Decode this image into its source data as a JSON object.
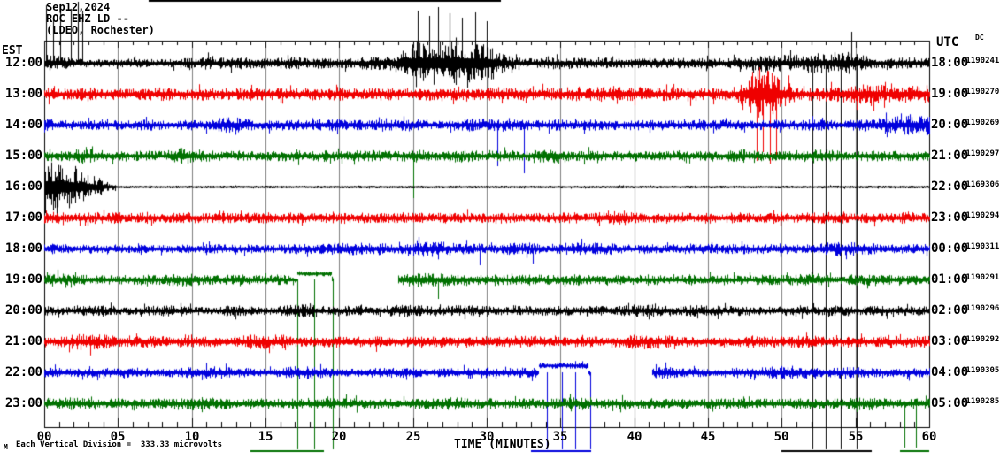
{
  "header": {
    "date": "Sep12,2024",
    "station": "ROC EHZ LD --",
    "location": "(LDEO, Rochester)"
  },
  "axes": {
    "left_timezone_label": "EST",
    "right_timezone_label": "UTC",
    "right_sub_label": "DC",
    "x_title": "TIME (MINUTES)",
    "x_ticks": [
      "00",
      "05",
      "10",
      "15",
      "20",
      "25",
      "30",
      "35",
      "40",
      "45",
      "50",
      "55",
      "60"
    ],
    "footnote": "Each Vertical Division =  333.33 microvolts",
    "corner_mark": "M"
  },
  "chart_data": {
    "type": "seismogram-helicorder",
    "title": "ROC EHZ LD -- (LDEO, Rochester) Sep12,2024",
    "x_range_minutes": [
      0,
      60
    ],
    "grid_interval_minutes": 5,
    "vertical_division_microvolts": 333.33,
    "frame_color": "#000000",
    "grid_color": "#7f7f7f",
    "trace_colors": {
      "black": "#000000",
      "red": "#ef0000",
      "blue": "#0000dd",
      "green": "#007000"
    },
    "rows": [
      {
        "est": "12:00",
        "utc": "18:00",
        "dc": "-1190241",
        "color": "#000000",
        "env": [
          10,
          8,
          5,
          4,
          4,
          4,
          5,
          4,
          4,
          5,
          6,
          7,
          6,
          7,
          6,
          5,
          6,
          7,
          5,
          6,
          5,
          6,
          7,
          7,
          10,
          24,
          25,
          24,
          25,
          24,
          23,
          10,
          6,
          5,
          6,
          7,
          6,
          5,
          6,
          5,
          5,
          6,
          5,
          6,
          5,
          6,
          5,
          6,
          8,
          10,
          9,
          9,
          11,
          11,
          13,
          12,
          7,
          5,
          6,
          6
        ],
        "vlines": [
          [
            0.1,
            6
          ],
          [
            0.6,
            20
          ],
          [
            1.1,
            4
          ],
          [
            1.8,
            10
          ],
          [
            2.3,
            2
          ],
          [
            2.6,
            12
          ],
          [
            25.3,
            12
          ],
          [
            26.1,
            18
          ],
          [
            26.7,
            8
          ],
          [
            27.5,
            15
          ],
          [
            28.3,
            20
          ],
          [
            29.2,
            14
          ],
          [
            30.0,
            24
          ],
          [
            52.1,
            508
          ],
          [
            53.0,
            508
          ],
          [
            54.0,
            508
          ],
          [
            54.7,
            36
          ],
          [
            55.1,
            508
          ]
        ],
        "bars": [
          [
            7.1,
            31.0,
            0
          ],
          [
            50.0,
            56.1,
            509
          ]
        ]
      },
      {
        "est": "13:00",
        "utc": "19:00",
        "dc": "-1190270",
        "color": "#ef0000",
        "env": [
          7,
          6,
          6,
          8,
          6,
          6,
          7,
          6,
          8,
          6,
          6,
          7,
          6,
          7,
          8,
          6,
          7,
          6,
          7,
          6,
          7,
          6,
          6,
          7,
          6,
          7,
          7,
          6,
          7,
          6,
          7,
          8,
          7,
          9,
          7,
          7,
          8,
          7,
          8,
          10,
          8,
          7,
          7,
          7,
          8,
          7,
          7,
          9,
          26,
          28,
          16,
          8,
          7,
          8,
          9,
          10,
          12,
          10,
          9,
          10
        ],
        "vlines": [
          [
            48.3,
            182
          ],
          [
            48.7,
            172
          ],
          [
            49.2,
            185
          ],
          [
            49.6,
            178
          ],
          [
            48.5,
            76
          ],
          [
            49.0,
            80
          ]
        ],
        "bars": []
      },
      {
        "est": "14:00",
        "utc": "20:00",
        "dc": "-1190269",
        "color": "#0000dd",
        "env": [
          8,
          6,
          5,
          5,
          6,
          5,
          5,
          6,
          5,
          5,
          6,
          6,
          8,
          9,
          6,
          5,
          6,
          6,
          5,
          6,
          7,
          6,
          5,
          6,
          6,
          7,
          6,
          5,
          6,
          7,
          7,
          6,
          6,
          5,
          6,
          6,
          5,
          6,
          5,
          5,
          6,
          5,
          6,
          5,
          6,
          5,
          6,
          6,
          5,
          6,
          6,
          5,
          6,
          6,
          5,
          6,
          7,
          8,
          10,
          11
        ],
        "vlines": [
          [
            30.7,
            188
          ],
          [
            32.5,
            196
          ]
        ],
        "bars": []
      },
      {
        "est": "15:00",
        "utc": "21:00",
        "dc": "-1190297",
        "color": "#007000",
        "env": [
          6,
          5,
          7,
          8,
          6,
          5,
          5,
          6,
          5,
          9,
          8,
          6,
          5,
          6,
          5,
          5,
          6,
          6,
          5,
          6,
          5,
          6,
          7,
          6,
          5,
          7,
          6,
          5,
          7,
          6,
          5,
          6,
          5,
          6,
          8,
          7,
          5,
          6,
          5,
          5,
          6,
          5,
          5,
          6,
          5,
          6,
          5,
          8,
          6,
          5,
          6,
          5,
          8,
          7,
          6,
          5,
          6,
          5,
          6,
          5
        ],
        "vlines": [
          [
            25.0,
            224
          ]
        ],
        "bars": []
      },
      {
        "est": "16:00",
        "utc": "22:00",
        "dc": "-1169306",
        "color": "#000000",
        "env": [
          30,
          28,
          22,
          15,
          8,
          1,
          1,
          1,
          1,
          1,
          1,
          1,
          1,
          1,
          1,
          1,
          1,
          1,
          1,
          1,
          1,
          1,
          1,
          1,
          1,
          1,
          1,
          1,
          1,
          1,
          1,
          1,
          1,
          1,
          1,
          1,
          1,
          1,
          1,
          1,
          1,
          1,
          1,
          1,
          1,
          1,
          1,
          1,
          1,
          1,
          1,
          1,
          1,
          1,
          1,
          1,
          1,
          1,
          1,
          1
        ],
        "vlines": [],
        "bars": []
      },
      {
        "est": "17:00",
        "utc": "23:00",
        "dc": "-1190294",
        "color": "#ef0000",
        "env": [
          8,
          6,
          5,
          5,
          6,
          6,
          5,
          6,
          5,
          6,
          6,
          5,
          6,
          5,
          6,
          6,
          5,
          6,
          5,
          5,
          6,
          5,
          6,
          5,
          6,
          6,
          5,
          6,
          5,
          6,
          5,
          6,
          5,
          6,
          5,
          6,
          6,
          5,
          8,
          9,
          6,
          5,
          6,
          6,
          5,
          6,
          5,
          6,
          5,
          6,
          5,
          5,
          6,
          6,
          7,
          5,
          6,
          5,
          6,
          6
        ],
        "vlines": [],
        "bars": []
      },
      {
        "est": "18:00",
        "utc": "00:00",
        "dc": "-1190311",
        "color": "#0000dd",
        "env": [
          6,
          5,
          4,
          5,
          4,
          5,
          4,
          5,
          4,
          5,
          4,
          5,
          5,
          4,
          5,
          4,
          5,
          6,
          5,
          6,
          7,
          7,
          6,
          7,
          5,
          8,
          9,
          8,
          7,
          6,
          5,
          6,
          7,
          6,
          5,
          6,
          7,
          7,
          6,
          5,
          5,
          6,
          5,
          5,
          6,
          5,
          5,
          6,
          5,
          5,
          6,
          5,
          5,
          7,
          8,
          7,
          6,
          5,
          5,
          5
        ],
        "vlines": [
          [
            29.5,
            300
          ],
          [
            33.1,
            298
          ]
        ],
        "bars": []
      },
      {
        "est": "19:00",
        "utc": "01:00",
        "dc": "-1190291",
        "color": "#007000",
        "env": [
          7,
          7,
          6,
          5,
          5,
          5,
          5,
          6,
          5,
          7,
          7,
          5,
          5,
          6,
          5,
          5,
          6,
          3,
          3,
          3,
          4,
          4,
          4,
          4,
          8,
          8,
          8,
          7,
          7,
          6,
          5,
          6,
          5,
          6,
          5,
          5,
          6,
          5,
          5,
          6,
          5,
          6,
          5,
          5,
          6,
          5,
          6,
          5,
          5,
          6,
          5,
          6,
          7,
          7,
          5,
          6,
          6,
          5,
          6,
          5
        ],
        "offsets": [
          [
            17.1,
            19.5,
            -7,
            2.5
          ]
        ],
        "gaps": [
          [
            19.6,
            24.0
          ]
        ],
        "vlines": [
          [
            17.15,
            508
          ],
          [
            18.3,
            508
          ],
          [
            19.55,
            508
          ],
          [
            26.7,
            338
          ]
        ],
        "bars": [
          [
            14.0,
            19.0,
            509
          ]
        ]
      },
      {
        "est": "20:00",
        "utc": "02:00",
        "dc": "-1190296",
        "color": "#000000",
        "env": [
          5,
          5,
          5,
          6,
          6,
          5,
          4,
          5,
          6,
          6,
          5,
          4,
          5,
          6,
          5,
          4,
          5,
          8,
          8,
          5,
          5,
          6,
          5,
          5,
          7,
          7,
          5,
          5,
          6,
          6,
          5,
          5,
          6,
          5,
          5,
          5,
          5,
          6,
          5,
          5,
          7,
          7,
          6,
          5,
          6,
          6,
          5,
          5,
          5,
          5,
          5,
          6,
          5,
          5,
          6,
          5,
          5,
          6,
          5,
          5
        ],
        "vlines": [],
        "bars": []
      },
      {
        "est": "21:00",
        "utc": "03:00",
        "dc": "-1190292",
        "color": "#ef0000",
        "env": [
          6,
          5,
          8,
          9,
          8,
          6,
          5,
          7,
          6,
          5,
          6,
          6,
          5,
          6,
          8,
          8,
          8,
          6,
          5,
          6,
          6,
          5,
          7,
          6,
          5,
          6,
          6,
          7,
          6,
          5,
          6,
          6,
          6,
          7,
          6,
          5,
          6,
          6,
          5,
          6,
          8,
          8,
          8,
          6,
          5,
          6,
          6,
          5,
          7,
          6,
          5,
          7,
          7,
          5,
          6,
          6,
          5,
          8,
          6,
          6
        ],
        "vlines": [],
        "bars": []
      },
      {
        "est": "22:00",
        "utc": "04:00",
        "dc": "-1190305",
        "color": "#0000dd",
        "env": [
          6,
          5,
          4,
          5,
          5,
          6,
          6,
          5,
          4,
          5,
          6,
          7,
          7,
          6,
          5,
          4,
          5,
          7,
          7,
          6,
          5,
          4,
          5,
          5,
          6,
          5,
          4,
          5,
          5,
          6,
          6,
          5,
          5,
          6,
          4,
          4,
          4,
          4,
          5,
          5,
          5,
          5,
          7,
          5,
          5,
          4,
          5,
          5,
          5,
          6,
          8,
          8,
          5,
          5,
          6,
          6,
          5,
          4,
          5,
          5
        ],
        "offsets": [
          [
            33.5,
            36.9,
            -8,
            3
          ]
        ],
        "gaps": [
          [
            37.0,
            41.2
          ]
        ],
        "vlines": [
          [
            34.1,
            508
          ],
          [
            35.1,
            508
          ],
          [
            36.0,
            508
          ],
          [
            37.0,
            508
          ]
        ],
        "bars": [
          [
            33.0,
            37.1,
            509
          ]
        ]
      },
      {
        "est": "23:00",
        "utc": "05:00",
        "dc": "-1190285",
        "color": "#007000",
        "env": [
          7,
          6,
          7,
          5,
          5,
          6,
          5,
          5,
          6,
          5,
          7,
          7,
          6,
          5,
          6,
          6,
          5,
          6,
          5,
          6,
          6,
          6,
          5,
          6,
          5,
          6,
          6,
          7,
          7,
          5,
          6,
          5,
          5,
          6,
          5,
          6,
          7,
          7,
          5,
          6,
          6,
          6,
          5,
          6,
          5,
          6,
          6,
          6,
          5,
          6,
          5,
          6,
          6,
          5,
          6,
          7,
          7,
          6,
          6,
          6
        ],
        "vlines": [
          [
            58.3,
            506
          ],
          [
            59.1,
            506
          ]
        ],
        "bars": [
          [
            58.0,
            60.0,
            509
          ]
        ]
      }
    ]
  }
}
